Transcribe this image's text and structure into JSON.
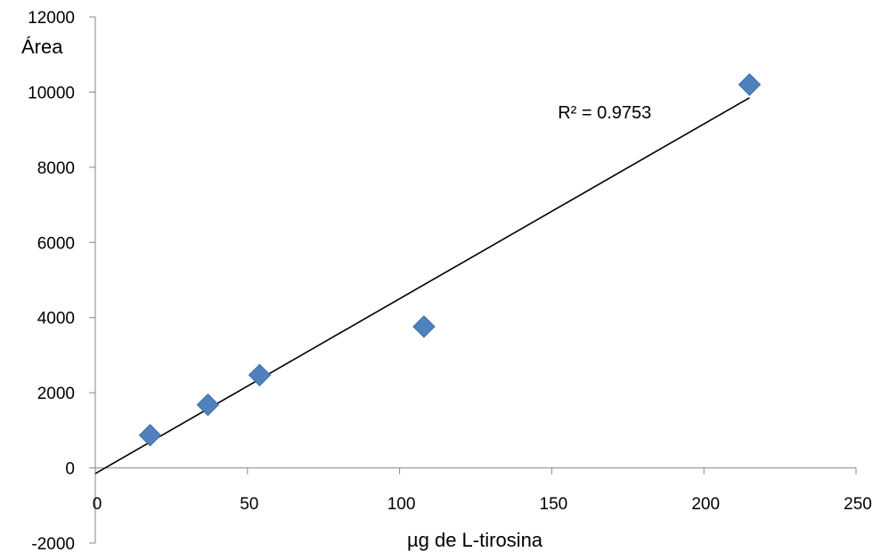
{
  "chart_data": {
    "type": "scatter",
    "title": "",
    "xlabel": "µg de L-tirosina",
    "ylabel": "Área",
    "xlim": [
      0,
      250
    ],
    "ylim": [
      -2000,
      12000
    ],
    "x_ticks": [
      "0",
      "50",
      "100",
      "150",
      "200",
      "250"
    ],
    "y_ticks": [
      "12000",
      "10000",
      "8000",
      "6000",
      "4000",
      "2000",
      "0",
      "-2000"
    ],
    "grid": false,
    "legend": "none",
    "series": [
      {
        "color": "#4F81BD",
        "marker": "diamond",
        "points": [
          {
            "x": 18,
            "y": 870
          },
          {
            "x": 37,
            "y": 1680
          },
          {
            "x": 54,
            "y": 2470
          },
          {
            "x": 108,
            "y": 3760
          },
          {
            "x": 215,
            "y": 10200
          }
        ]
      }
    ],
    "trendline": {
      "type": "linear",
      "color": "#000000",
      "x_start": 0,
      "x_end": 215,
      "y_start": -150,
      "y_end": 9850
    },
    "annotations": [
      {
        "text": "R² = 0.9753",
        "x": 152,
        "y": 9300
      }
    ]
  }
}
